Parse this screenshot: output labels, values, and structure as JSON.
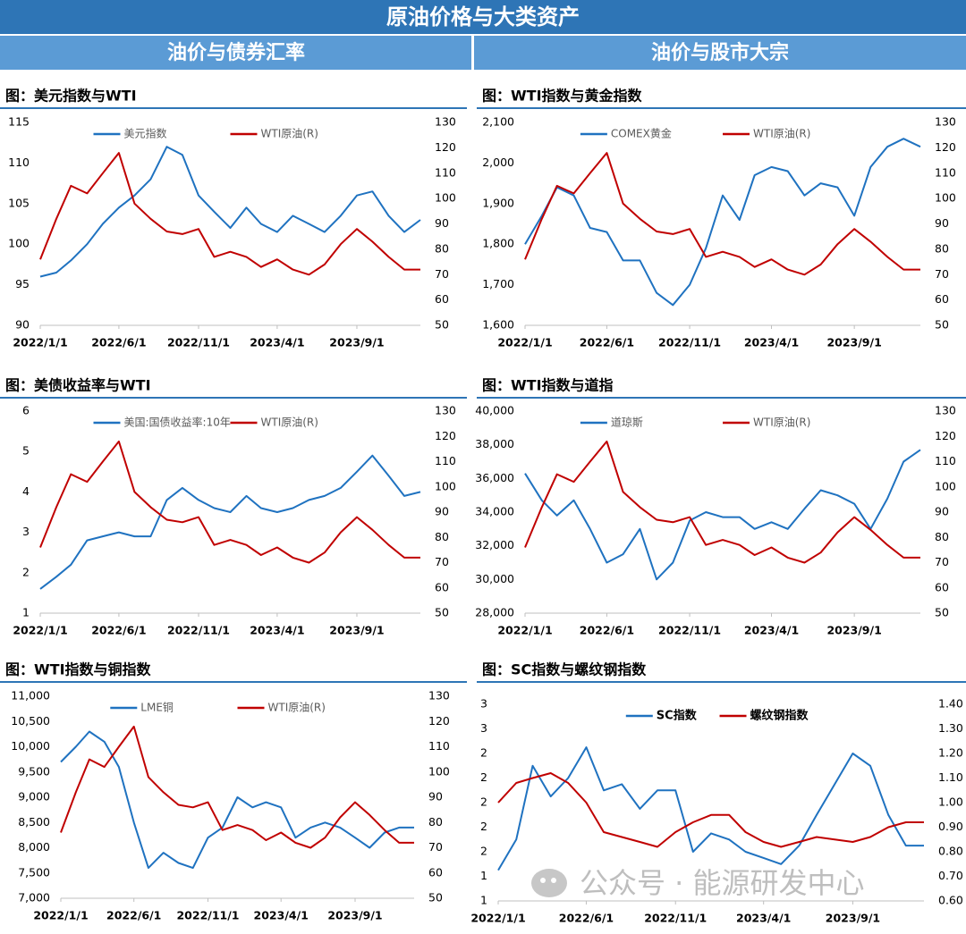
{
  "header": {
    "title": "原油价格与大类资产",
    "left": "油价与债券汇率",
    "right": "油价与股市大宗"
  },
  "watermark": "公众号 · 能源研发中心",
  "chart_data": [
    {
      "type": "line",
      "title": "图：美元指数与WTI",
      "x": [
        "2022/1/1",
        "2022/2/1",
        "2022/3/1",
        "2022/4/1",
        "2022/5/1",
        "2022/6/1",
        "2022/7/1",
        "2022/8/1",
        "2022/9/1",
        "2022/10/1",
        "2022/11/1",
        "2022/12/1",
        "2023/1/1",
        "2023/2/1",
        "2023/3/1",
        "2023/4/1",
        "2023/5/1",
        "2023/6/1",
        "2023/7/1",
        "2023/8/1",
        "2023/9/1",
        "2023/10/1",
        "2023/11/1",
        "2023/12/1",
        "2024/1/1"
      ],
      "xticks": [
        "2022/1/1",
        "2022/6/1",
        "2022/11/1",
        "2023/4/1",
        "2023/9/1"
      ],
      "ylim": [
        90,
        115
      ],
      "yticks": [
        90,
        95,
        100,
        105,
        110,
        115
      ],
      "y2lim": [
        50,
        130
      ],
      "y2ticks": [
        50,
        60,
        70,
        80,
        90,
        100,
        110,
        120,
        130
      ],
      "series": [
        {
          "name": "美元指数",
          "color": "#1f72c0",
          "values": [
            96,
            96.5,
            98,
            100,
            102.5,
            104.5,
            106,
            108,
            112,
            111,
            106,
            104,
            102,
            104.5,
            102.5,
            101.5,
            103.5,
            102.5,
            101.5,
            103.5,
            106,
            106.5,
            103.5,
            101.5,
            103
          ]
        },
        {
          "name": "WTI原油(R)",
          "color": "#c00000",
          "axis": "y2",
          "values": [
            76,
            92,
            105,
            102,
            110,
            118,
            98,
            92,
            87,
            86,
            88,
            77,
            79,
            77,
            73,
            76,
            72,
            70,
            74,
            82,
            88,
            83,
            77,
            72,
            72
          ]
        }
      ]
    },
    {
      "type": "line",
      "title": "图：WTI指数与黄金指数",
      "x": [
        "2022/1/1",
        "2022/2/1",
        "2022/3/1",
        "2022/4/1",
        "2022/5/1",
        "2022/6/1",
        "2022/7/1",
        "2022/8/1",
        "2022/9/1",
        "2022/10/1",
        "2022/11/1",
        "2022/12/1",
        "2023/1/1",
        "2023/2/1",
        "2023/3/1",
        "2023/4/1",
        "2023/5/1",
        "2023/6/1",
        "2023/7/1",
        "2023/8/1",
        "2023/9/1",
        "2023/10/1",
        "2023/11/1",
        "2023/12/1",
        "2024/1/1"
      ],
      "xticks": [
        "2022/1/1",
        "2022/6/1",
        "2022/11/1",
        "2023/4/1",
        "2023/9/1"
      ],
      "ylim": [
        1600,
        2100
      ],
      "yticks": [
        {
          "value": 1600,
          "label": "1,600"
        },
        {
          "value": 1700,
          "label": "1,700"
        },
        {
          "value": 1800,
          "label": "1,800"
        },
        {
          "value": 1900,
          "label": "1,900"
        },
        {
          "value": 2000,
          "label": "2,000"
        },
        {
          "value": 2100,
          "label": "2,100"
        }
      ],
      "y2lim": [
        50,
        130
      ],
      "y2ticks": [
        50,
        60,
        70,
        80,
        90,
        100,
        110,
        120,
        130
      ],
      "series": [
        {
          "name": "COMEX黄金",
          "color": "#1f72c0",
          "values": [
            1800,
            1870,
            1940,
            1920,
            1840,
            1830,
            1760,
            1760,
            1680,
            1650,
            1700,
            1790,
            1920,
            1860,
            1970,
            1990,
            1980,
            1920,
            1950,
            1940,
            1870,
            1990,
            2040,
            2060,
            2040
          ]
        },
        {
          "name": "WTI原油(R)",
          "color": "#c00000",
          "axis": "y2",
          "values": [
            76,
            92,
            105,
            102,
            110,
            118,
            98,
            92,
            87,
            86,
            88,
            77,
            79,
            77,
            73,
            76,
            72,
            70,
            74,
            82,
            88,
            83,
            77,
            72,
            72
          ]
        }
      ]
    },
    {
      "type": "line",
      "title": "图：美债收益率与WTI",
      "x": [
        "2022/1/1",
        "2022/2/1",
        "2022/3/1",
        "2022/4/1",
        "2022/5/1",
        "2022/6/1",
        "2022/7/1",
        "2022/8/1",
        "2022/9/1",
        "2022/10/1",
        "2022/11/1",
        "2022/12/1",
        "2023/1/1",
        "2023/2/1",
        "2023/3/1",
        "2023/4/1",
        "2023/5/1",
        "2023/6/1",
        "2023/7/1",
        "2023/8/1",
        "2023/9/1",
        "2023/10/1",
        "2023/11/1",
        "2023/12/1",
        "2024/1/1"
      ],
      "xticks": [
        "2022/1/1",
        "2022/6/1",
        "2022/11/1",
        "2023/4/1",
        "2023/9/1"
      ],
      "ylim": [
        1,
        6
      ],
      "yticks": [
        1,
        2,
        3,
        4,
        5,
        6
      ],
      "y2lim": [
        50,
        130
      ],
      "y2ticks": [
        50,
        60,
        70,
        80,
        90,
        100,
        110,
        120,
        130
      ],
      "series": [
        {
          "name": "美国:国债收益率:10年",
          "color": "#1f72c0",
          "values": [
            1.6,
            1.9,
            2.2,
            2.8,
            2.9,
            3.0,
            2.9,
            2.9,
            3.8,
            4.1,
            3.8,
            3.6,
            3.5,
            3.9,
            3.6,
            3.5,
            3.6,
            3.8,
            3.9,
            4.1,
            4.5,
            4.9,
            4.4,
            3.9,
            4.0
          ]
        },
        {
          "name": "WTI原油(R)",
          "color": "#c00000",
          "axis": "y2",
          "values": [
            76,
            92,
            105,
            102,
            110,
            118,
            98,
            92,
            87,
            86,
            88,
            77,
            79,
            77,
            73,
            76,
            72,
            70,
            74,
            82,
            88,
            83,
            77,
            72,
            72
          ]
        }
      ]
    },
    {
      "type": "line",
      "title": "图：WTI指数与道指",
      "x": [
        "2022/1/1",
        "2022/2/1",
        "2022/3/1",
        "2022/4/1",
        "2022/5/1",
        "2022/6/1",
        "2022/7/1",
        "2022/8/1",
        "2022/9/1",
        "2022/10/1",
        "2022/11/1",
        "2022/12/1",
        "2023/1/1",
        "2023/2/1",
        "2023/3/1",
        "2023/4/1",
        "2023/5/1",
        "2023/6/1",
        "2023/7/1",
        "2023/8/1",
        "2023/9/1",
        "2023/10/1",
        "2023/11/1",
        "2023/12/1",
        "2024/1/1"
      ],
      "xticks": [
        "2022/1/1",
        "2022/6/1",
        "2022/11/1",
        "2023/4/1",
        "2023/9/1"
      ],
      "ylim": [
        28000,
        40000
      ],
      "yticks": [
        {
          "value": 28000,
          "label": "28,000"
        },
        {
          "value": 30000,
          "label": "30,000"
        },
        {
          "value": 32000,
          "label": "32,000"
        },
        {
          "value": 34000,
          "label": "34,000"
        },
        {
          "value": 36000,
          "label": "36,000"
        },
        {
          "value": 38000,
          "label": "38,000"
        },
        {
          "value": 40000,
          "label": "40,000"
        }
      ],
      "y2lim": [
        50,
        130
      ],
      "y2ticks": [
        50,
        60,
        70,
        80,
        90,
        100,
        110,
        120,
        130
      ],
      "series": [
        {
          "name": "道琼斯",
          "color": "#1f72c0",
          "values": [
            36300,
            34700,
            33800,
            34700,
            33000,
            31000,
            31500,
            33000,
            30000,
            31000,
            33500,
            34000,
            33700,
            33700,
            33000,
            33400,
            33000,
            34200,
            35300,
            35000,
            34500,
            33000,
            34800,
            37000,
            37700
          ]
        },
        {
          "name": "WTI原油(R)",
          "color": "#c00000",
          "axis": "y2",
          "values": [
            76,
            92,
            105,
            102,
            110,
            118,
            98,
            92,
            87,
            86,
            88,
            77,
            79,
            77,
            73,
            76,
            72,
            70,
            74,
            82,
            88,
            83,
            77,
            72,
            72
          ]
        }
      ]
    },
    {
      "type": "line",
      "title": "图：WTI指数与铜指数",
      "x": [
        "2022/1/1",
        "2022/2/1",
        "2022/3/1",
        "2022/4/1",
        "2022/5/1",
        "2022/6/1",
        "2022/7/1",
        "2022/8/1",
        "2022/9/1",
        "2022/10/1",
        "2022/11/1",
        "2022/12/1",
        "2023/1/1",
        "2023/2/1",
        "2023/3/1",
        "2023/4/1",
        "2023/5/1",
        "2023/6/1",
        "2023/7/1",
        "2023/8/1",
        "2023/9/1",
        "2023/10/1",
        "2023/11/1",
        "2023/12/1",
        "2024/1/1"
      ],
      "xticks": [
        "2022/1/1",
        "2022/6/1",
        "2022/11/1",
        "2023/4/1",
        "2023/9/1"
      ],
      "ylim": [
        7000,
        11000
      ],
      "yticks": [
        {
          "value": 7000,
          "label": "7,000"
        },
        {
          "value": 7500,
          "label": "7,500"
        },
        {
          "value": 8000,
          "label": "8,000"
        },
        {
          "value": 8500,
          "label": "8,500"
        },
        {
          "value": 9000,
          "label": "9,000"
        },
        {
          "value": 9500,
          "label": "9,500"
        },
        {
          "value": 10000,
          "label": "10,000"
        },
        {
          "value": 10500,
          "label": "10,500"
        },
        {
          "value": 11000,
          "label": "11,000"
        }
      ],
      "y2lim": [
        50,
        130
      ],
      "y2ticks": [
        50,
        60,
        70,
        80,
        90,
        100,
        110,
        120,
        130
      ],
      "series": [
        {
          "name": "LME铜",
          "color": "#1f72c0",
          "values": [
            9700,
            10000,
            10300,
            10100,
            9600,
            8500,
            7600,
            7900,
            7700,
            7600,
            8200,
            8400,
            9000,
            8800,
            8900,
            8800,
            8200,
            8400,
            8500,
            8400,
            8200,
            8000,
            8300,
            8400,
            8400
          ]
        },
        {
          "name": "WTI原油(R)",
          "color": "#c00000",
          "axis": "y2",
          "values": [
            76,
            92,
            105,
            102,
            110,
            118,
            98,
            92,
            87,
            86,
            88,
            77,
            79,
            77,
            73,
            76,
            72,
            70,
            74,
            82,
            88,
            83,
            77,
            72,
            72
          ]
        }
      ]
    },
    {
      "type": "line",
      "title": "图：SC指数与螺纹钢指数",
      "x": [
        "2022/1/1",
        "2022/2/1",
        "2022/3/1",
        "2022/4/1",
        "2022/5/1",
        "2022/6/1",
        "2022/7/1",
        "2022/8/1",
        "2022/9/1",
        "2022/10/1",
        "2022/11/1",
        "2022/12/1",
        "2023/1/1",
        "2023/2/1",
        "2023/3/1",
        "2023/4/1",
        "2023/5/1",
        "2023/6/1",
        "2023/7/1",
        "2023/8/1",
        "2023/9/1",
        "2023/10/1",
        "2023/11/1",
        "2023/12/1",
        "2024/1/1"
      ],
      "xticks": [
        "2022/1/1",
        "2022/6/1",
        "2022/11/1",
        "2023/4/1",
        "2023/9/1"
      ],
      "ylim": [
        1.1,
        2.7
      ],
      "yticks": [
        {
          "value": 1.1,
          "label": "1"
        },
        {
          "value": 1.3,
          "label": "1"
        },
        {
          "value": 1.5,
          "label": "2"
        },
        {
          "value": 1.7,
          "label": "2"
        },
        {
          "value": 1.9,
          "label": "2"
        },
        {
          "value": 2.1,
          "label": "2"
        },
        {
          "value": 2.3,
          "label": "2"
        },
        {
          "value": 2.5,
          "label": "3"
        },
        {
          "value": 2.7,
          "label": "3"
        }
      ],
      "y2lim": [
        0.6,
        1.4
      ],
      "y2ticks": [
        {
          "value": 0.6,
          "label": "0.60"
        },
        {
          "value": 0.7,
          "label": "0.70"
        },
        {
          "value": 0.8,
          "label": "0.80"
        },
        {
          "value": 0.9,
          "label": "0.90"
        },
        {
          "value": 1.0,
          "label": "1.00"
        },
        {
          "value": 1.1,
          "label": "1.10"
        },
        {
          "value": 1.2,
          "label": "1.20"
        },
        {
          "value": 1.3,
          "label": "1.30"
        },
        {
          "value": 1.4,
          "label": "1.40"
        }
      ],
      "series": [
        {
          "name": "SC指数",
          "color": "#1f72c0",
          "values": [
            1.35,
            1.6,
            2.2,
            1.95,
            2.1,
            2.35,
            2.0,
            2.05,
            1.85,
            2.0,
            2.0,
            1.5,
            1.65,
            1.6,
            1.5,
            1.45,
            1.4,
            1.55,
            1.8,
            2.05,
            2.3,
            2.2,
            1.8,
            1.55,
            1.55
          ]
        },
        {
          "name": "螺纹钢指数",
          "color": "#c00000",
          "axis": "y2",
          "values": [
            1.0,
            1.08,
            1.1,
            1.12,
            1.08,
            1.0,
            0.88,
            0.86,
            0.84,
            0.82,
            0.88,
            0.92,
            0.95,
            0.95,
            0.88,
            0.84,
            0.82,
            0.84,
            0.86,
            0.85,
            0.84,
            0.86,
            0.9,
            0.92,
            0.92
          ]
        }
      ]
    }
  ]
}
